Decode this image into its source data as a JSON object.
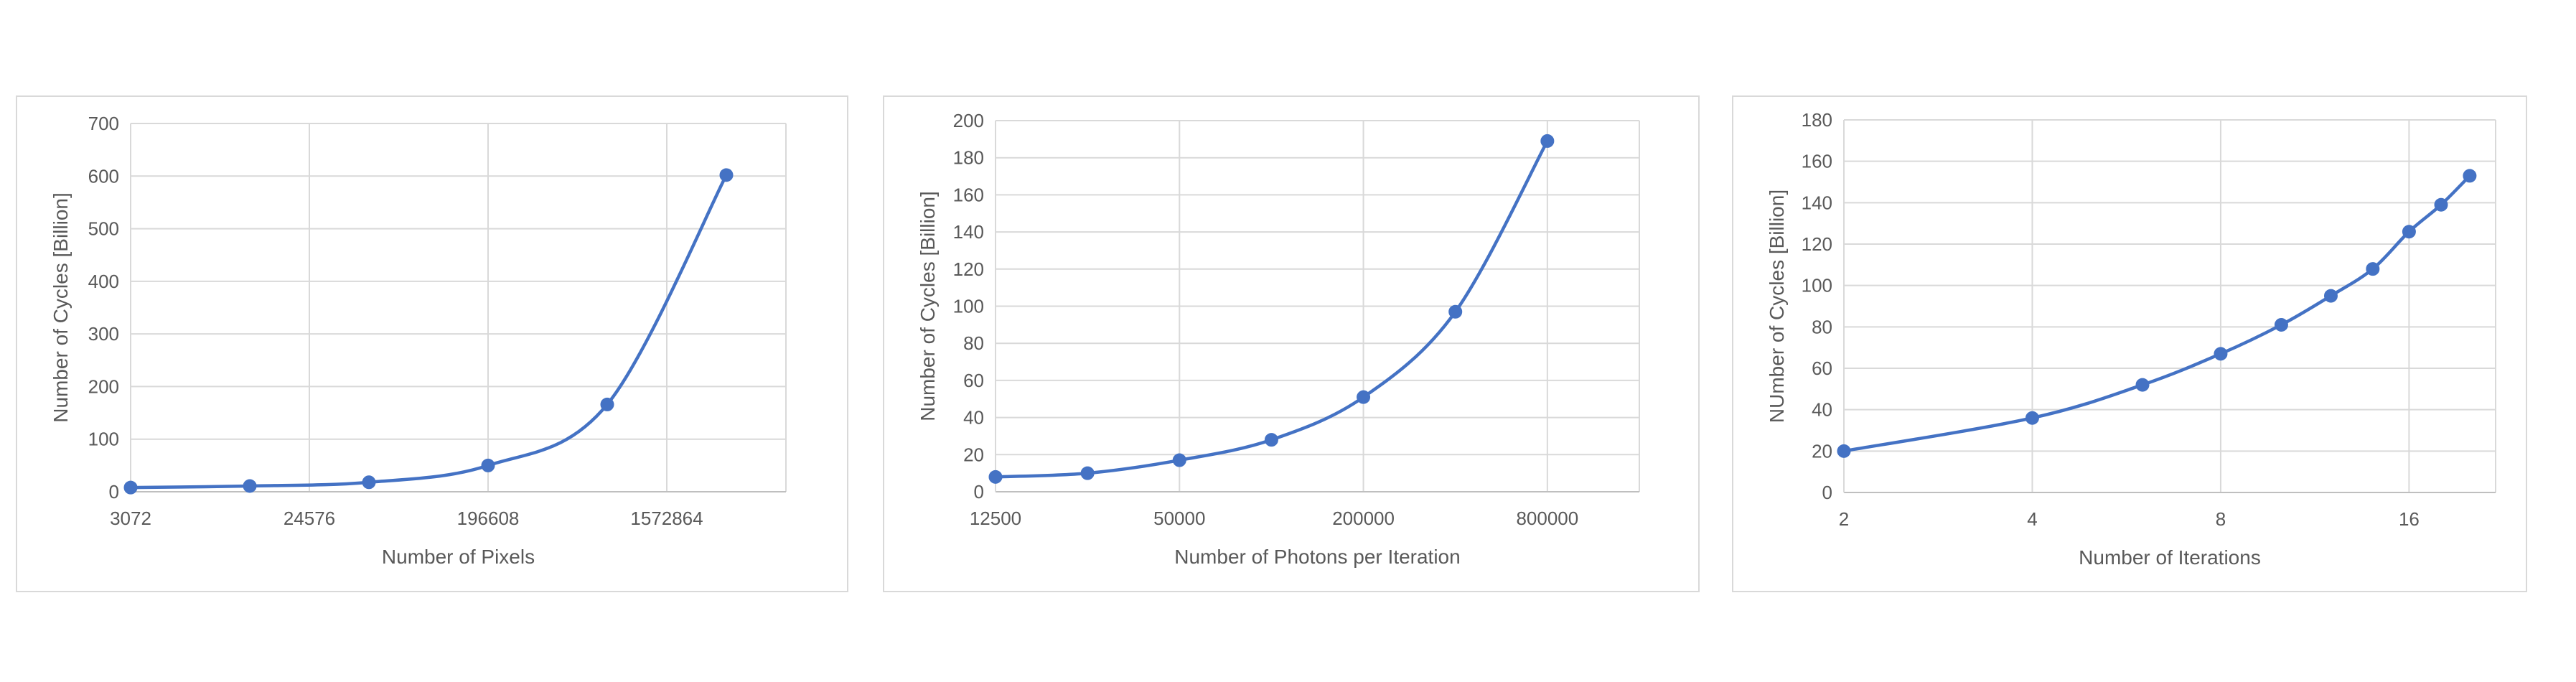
{
  "chart_data": [
    {
      "type": "line",
      "xscale": "log2",
      "xlabel": "Number of Pixels",
      "ylabel": "Number of Cycles [Billion]",
      "xlim": [
        3072,
        6291456
      ],
      "ylim": [
        0,
        700
      ],
      "xticks": [
        3072,
        24576,
        196608,
        1572864
      ],
      "xtick_labels": [
        "3072",
        "24576",
        "196608",
        "1572864"
      ],
      "yticks": [
        0,
        100,
        200,
        300,
        400,
        500,
        600,
        700
      ],
      "grid": true,
      "color": "#4472C4",
      "series": [
        {
          "x": [
            3072,
            12288,
            49152,
            196608,
            786432,
            3145728
          ],
          "values": [
            8,
            11,
            18,
            50,
            166,
            602
          ]
        }
      ]
    },
    {
      "type": "line",
      "xscale": "log2",
      "xlabel": "Number of Photons per Iteration",
      "ylabel": "Number of Cycles [Billion]",
      "xlim": [
        12500,
        1600000
      ],
      "ylim": [
        0,
        200
      ],
      "xticks": [
        12500,
        50000,
        200000,
        800000
      ],
      "xtick_labels": [
        "12500",
        "50000",
        "200000",
        "800000"
      ],
      "yticks": [
        0,
        20,
        40,
        60,
        80,
        100,
        120,
        140,
        160,
        180,
        200
      ],
      "grid": true,
      "color": "#4472C4",
      "series": [
        {
          "x": [
            12500,
            25000,
            50000,
            100000,
            200000,
            400000,
            800000
          ],
          "values": [
            8,
            10,
            17,
            28,
            51,
            97,
            189
          ]
        }
      ]
    },
    {
      "type": "line",
      "xscale": "log2",
      "xlabel": "Number of Iterations",
      "ylabel": "NUmber of Cycles [Billion]",
      "xlim": [
        2,
        22
      ],
      "ylim": [
        0,
        180
      ],
      "xticks": [
        2,
        4,
        8,
        16
      ],
      "xtick_labels": [
        "2",
        "4",
        "8",
        "16"
      ],
      "yticks": [
        0,
        20,
        40,
        60,
        80,
        100,
        120,
        140,
        160,
        180
      ],
      "grid": true,
      "color": "#4472C4",
      "series": [
        {
          "x": [
            2,
            4,
            6,
            8,
            10,
            12,
            14,
            16,
            18,
            20
          ],
          "values": [
            20,
            36,
            52,
            67,
            81,
            95,
            108,
            126,
            139,
            153
          ]
        }
      ]
    }
  ]
}
